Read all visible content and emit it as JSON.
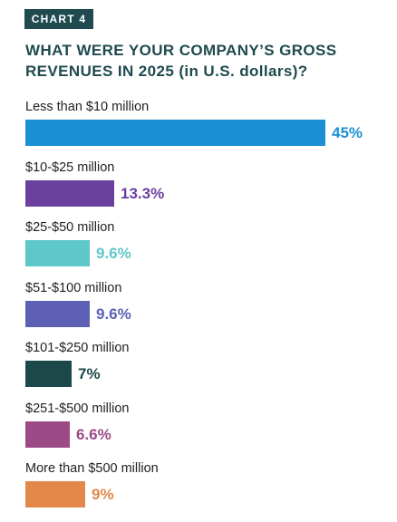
{
  "tag": "CHART 4",
  "title": "WHAT WERE YOUR COMPANY’S GROSS REVENUES IN 2025 (in U.S. dollars)?",
  "chart_data": {
    "type": "bar",
    "orientation": "horizontal",
    "categories": [
      "Less than $10 million",
      "$10-$25 million",
      "$25-$50 million",
      "$51-$100 million",
      "$101-$250 million",
      "$251-$500 million",
      "More than $500 million"
    ],
    "values": [
      45,
      13.3,
      9.6,
      9.6,
      7,
      6.6,
      9
    ],
    "value_labels": [
      "45%",
      "13.3%",
      "9.6%",
      "9.6%",
      "7%",
      "6.6%",
      "9%"
    ],
    "colors": [
      "#1b8fd3",
      "#6a3f9e",
      "#5ec7c9",
      "#5d60b4",
      "#1b4848",
      "#9b4a86",
      "#e2884a"
    ],
    "xlim": [
      0,
      45
    ],
    "grid": false,
    "legend": "none"
  }
}
